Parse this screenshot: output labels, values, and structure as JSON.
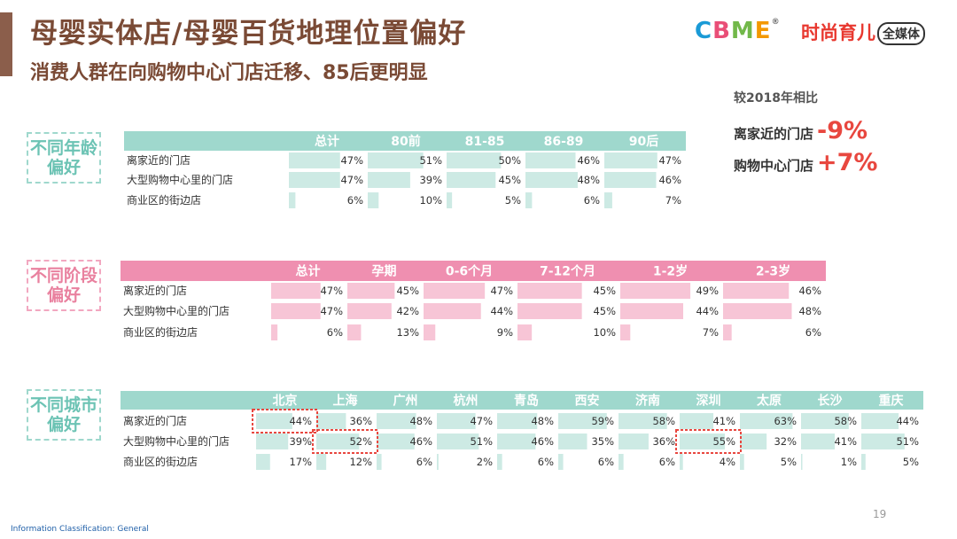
{
  "header": {
    "title": "母婴实体店/母婴百货地理位置偏好",
    "subtitle": "消费人群在向购物中心门店迁移、85后更明显",
    "logo_cbme": [
      "C",
      "B",
      "M",
      "E"
    ],
    "logo_media": "时尚育儿",
    "logo_media_box": "全媒体"
  },
  "comparison": {
    "heading": "较2018年相比",
    "items": [
      {
        "label": "离家近的门店",
        "value": "-9%"
      },
      {
        "label": "购物中心门店",
        "value": "+7%"
      }
    ]
  },
  "colors": {
    "teal_header": "#9fd8cd",
    "teal_bar": "#cdeae4",
    "pink_header": "#ef8fb0",
    "pink_bar": "#f7c5d6",
    "highlight": "#e8473f"
  },
  "chart_data": [
    {
      "type": "table",
      "title": "不同年龄偏好",
      "label_lines": [
        "不同年龄",
        "偏好"
      ],
      "categories": [
        "总计",
        "80前",
        "81-85",
        "86-89",
        "90后"
      ],
      "rows": [
        "离家近的门店",
        "大型购物中心里的门店",
        "商业区的街边店"
      ],
      "series": [
        {
          "name": "离家近的门店",
          "values": [
            47,
            51,
            50,
            46,
            47
          ]
        },
        {
          "name": "大型购物中心里的门店",
          "values": [
            47,
            39,
            45,
            48,
            46
          ]
        },
        {
          "name": "商业区的街边店",
          "values": [
            6,
            10,
            5,
            6,
            7
          ]
        }
      ],
      "unit": "%"
    },
    {
      "type": "table",
      "title": "不同阶段偏好",
      "label_lines": [
        "不同阶段",
        "偏好"
      ],
      "categories": [
        "总计",
        "孕期",
        "0-6个月",
        "7-12个月",
        "1-2岁",
        "2-3岁"
      ],
      "rows": [
        "离家近的门店",
        "大型购物中心里的门店",
        "商业区的街边店"
      ],
      "series": [
        {
          "name": "离家近的门店",
          "values": [
            47,
            45,
            47,
            45,
            49,
            46
          ]
        },
        {
          "name": "大型购物中心里的门店",
          "values": [
            47,
            42,
            44,
            45,
            44,
            48
          ]
        },
        {
          "name": "商业区的街边店",
          "values": [
            6,
            13,
            9,
            10,
            7,
            6
          ]
        }
      ],
      "unit": "%"
    },
    {
      "type": "table",
      "title": "不同城市偏好",
      "label_lines": [
        "不同城市",
        "偏好"
      ],
      "categories": [
        "北京",
        "上海",
        "广州",
        "杭州",
        "青岛",
        "西安",
        "济南",
        "深圳",
        "太原",
        "长沙",
        "重庆"
      ],
      "rows": [
        "离家近的门店",
        "大型购物中心里的门店",
        "商业区的街边店"
      ],
      "series": [
        {
          "name": "离家近的门店",
          "values": [
            44,
            36,
            48,
            47,
            48,
            59,
            58,
            41,
            63,
            58,
            44
          ]
        },
        {
          "name": "大型购物中心里的门店",
          "values": [
            39,
            52,
            46,
            51,
            46,
            35,
            36,
            55,
            32,
            41,
            51
          ]
        },
        {
          "name": "商业区的街边店",
          "values": [
            17,
            12,
            6,
            2,
            6,
            6,
            6,
            4,
            5,
            1,
            5
          ]
        }
      ],
      "highlights": [
        {
          "row": 0,
          "col": 0
        },
        {
          "row": 1,
          "col": 1
        },
        {
          "row": 1,
          "col": 7
        }
      ],
      "unit": "%"
    }
  ],
  "footer": {
    "classification": "Information Classification: General",
    "page": "19"
  }
}
